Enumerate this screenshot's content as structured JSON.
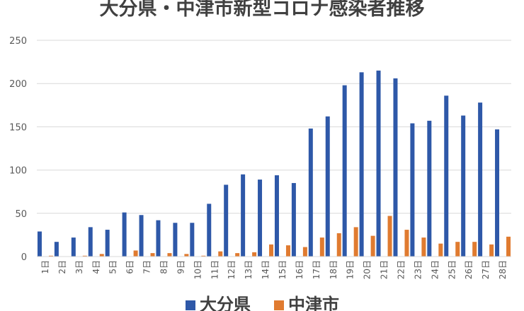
{
  "chart_data": {
    "type": "bar",
    "title": "大分県・中津市新型コロナ感染者推移",
    "categories": [
      "1日",
      "2日",
      "3日",
      "4日",
      "5日",
      "6日",
      "7日",
      "8日",
      "9日",
      "10日",
      "11日",
      "12日",
      "13日",
      "14日",
      "15日",
      "16日",
      "17日",
      "18日",
      "19日",
      "20日",
      "21日",
      "22日",
      "23日",
      "24日",
      "25日",
      "26日",
      "27日",
      "28日"
    ],
    "series": [
      {
        "name": "大分県",
        "color": "#2E58A8",
        "values": [
          29,
          17,
          22,
          34,
          31,
          51,
          48,
          42,
          39,
          39,
          61,
          83,
          95,
          89,
          94,
          85,
          148,
          162,
          198,
          213,
          215,
          206,
          154,
          157,
          186,
          163,
          178,
          147
        ]
      },
      {
        "name": "中津市",
        "color": "#E07B30",
        "values": [
          1,
          0,
          1,
          3,
          0,
          7,
          4,
          4,
          3,
          1,
          6,
          4,
          5,
          14,
          13,
          11,
          22,
          27,
          34,
          24,
          47,
          31,
          22,
          15,
          17,
          17,
          14,
          23
        ]
      }
    ],
    "ylim": [
      0,
      250
    ],
    "yticks": [
      0,
      50,
      100,
      150,
      200,
      250
    ],
    "grid": true,
    "legend": "bottom",
    "xlabel": "",
    "ylabel": ""
  }
}
